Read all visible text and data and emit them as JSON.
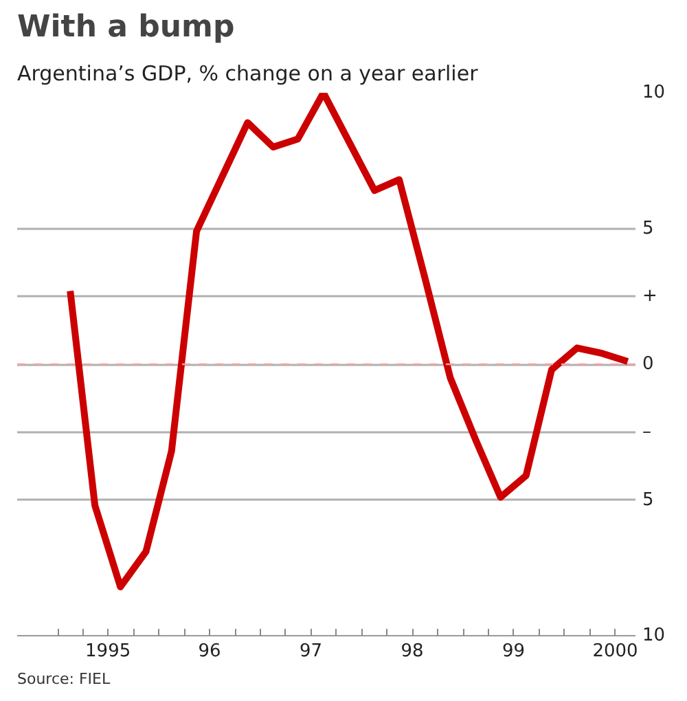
{
  "chart_data": {
    "type": "line",
    "title": "With a bump",
    "subtitle": "Argentina’s GDP, % change on a year earlier",
    "annotations": [
      "Source: FIEL"
    ],
    "x": [
      "1995-02-15",
      "1995-05-15",
      "1995-08-15",
      "1995-11-15",
      "1996-02-15",
      "1996-05-15",
      "1996-08-15",
      "1996-11-15",
      "1997-02-15",
      "1997-05-15",
      "1997-08-15",
      "1997-11-15",
      "1998-02-15",
      "1998-05-15",
      "1998-08-15",
      "1998-11-15",
      "1999-02-15",
      "1999-05-15",
      "1999-08-15",
      "1999-11-15",
      "2000-02-15",
      "2000-05-15",
      "2000-08-15"
    ],
    "series": [
      {
        "color": "#cc0000",
        "values": [
          2.7,
          -5.2,
          -8.2,
          -6.9,
          -3.2,
          4.9,
          6.9,
          8.9,
          8.0,
          8.3,
          10.0,
          8.2,
          6.4,
          6.8,
          3.2,
          -0.5,
          -2.8,
          -4.9,
          -4.1,
          -0.2,
          0.6,
          0.4,
          0.1
        ]
      }
    ],
    "xlim": [
      "1994-08-08",
      "2000-09-12"
    ],
    "ylim": [
      -10,
      10
    ],
    "xticks": [
      {
        "value": "1995-01-01",
        "label": null
      },
      {
        "value": "1995-04-01",
        "label": null
      },
      {
        "value": "1995-07-01",
        "label": "1995"
      },
      {
        "value": "1995-10-01",
        "label": null
      },
      {
        "value": "1996-01-01",
        "label": null
      },
      {
        "value": "1996-04-01",
        "label": null
      },
      {
        "value": "1996-07-01",
        "label": "96"
      },
      {
        "value": "1996-10-01",
        "label": null
      },
      {
        "value": "1997-01-01",
        "label": null
      },
      {
        "value": "1997-04-01",
        "label": null
      },
      {
        "value": "1997-07-01",
        "label": "97"
      },
      {
        "value": "1997-10-01",
        "label": null
      },
      {
        "value": "1998-01-01",
        "label": null
      },
      {
        "value": "1998-04-01",
        "label": null
      },
      {
        "value": "1998-07-01",
        "label": "98"
      },
      {
        "value": "1998-10-01",
        "label": null
      },
      {
        "value": "1999-01-01",
        "label": null
      },
      {
        "value": "1999-04-01",
        "label": null
      },
      {
        "value": "1999-07-01",
        "label": "99"
      },
      {
        "value": "1999-10-01",
        "label": null
      },
      {
        "value": "2000-01-01",
        "label": null
      },
      {
        "value": "2000-04-01",
        "label": null
      },
      {
        "value": "2000-07-01",
        "label": "2000"
      }
    ],
    "yticks": [
      {
        "value": -10,
        "label": "10"
      },
      {
        "value": -5,
        "label": "5"
      },
      {
        "value": -2.5,
        "label": "–"
      },
      0,
      {
        "value": 2.5,
        "label": "+"
      },
      5,
      10
    ],
    "ref_lines": [
      {
        "axis": "y",
        "value": 0,
        "color": "#f4a0a0",
        "line_style": "dashed"
      }
    ],
    "grid": "y",
    "line_style": "solid",
    "marker": "none"
  }
}
